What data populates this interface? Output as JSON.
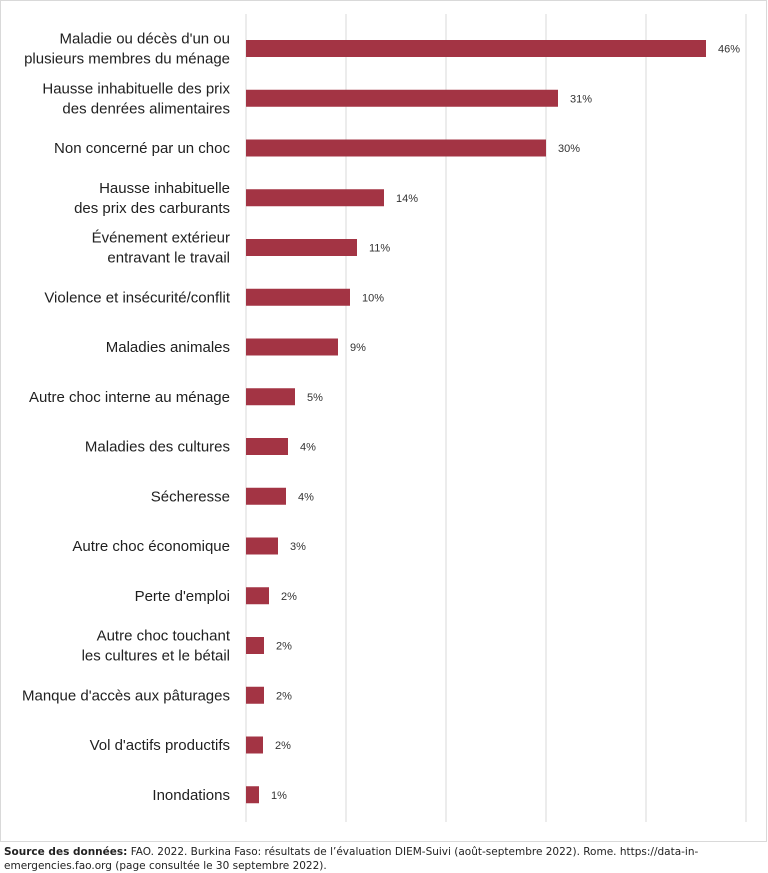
{
  "chart_data": {
    "type": "bar",
    "orientation": "horizontal",
    "categories": [
      [
        "Maladie ou décès d'un ou",
        "plusieurs membres du ménage"
      ],
      [
        "Hausse inhabituelle des prix",
        "des denrées alimentaires"
      ],
      [
        "Non concerné par un choc"
      ],
      [
        "Hausse inhabituelle",
        "des prix des carburants"
      ],
      [
        "Événement extérieur",
        "entravant le travail"
      ],
      [
        "Violence et insécurité/conflit"
      ],
      [
        "Maladies animales"
      ],
      [
        "Autre choc interne au ménage"
      ],
      [
        "Maladies des cultures"
      ],
      [
        "Sécheresse"
      ],
      [
        "Autre choc économique"
      ],
      [
        "Perte d'emploi"
      ],
      [
        "Autre choc touchant",
        "les cultures et le bétail"
      ],
      [
        "Manque d'accès aux pâturages"
      ],
      [
        "Vol d'actifs productifs"
      ],
      [
        "Inondations"
      ]
    ],
    "values": [
      46,
      31,
      30,
      14,
      11,
      10,
      9,
      5,
      4,
      4,
      3,
      2,
      2,
      2,
      2,
      1
    ],
    "value_labels": [
      "46%",
      "31%",
      "30%",
      "14%",
      "11%",
      "10%",
      "9%",
      "5%",
      "4%",
      "4%",
      "3%",
      "2%",
      "2%",
      "2%",
      "2%",
      "1%"
    ],
    "bar_values": [
      46,
      31.2,
      30,
      13.8,
      11.1,
      10.4,
      9.2,
      4.9,
      4.2,
      4.0,
      3.2,
      2.3,
      1.8,
      1.8,
      1.7,
      1.3
    ],
    "xlim": [
      0,
      50
    ],
    "gridlines_at": [
      0,
      10,
      20,
      30,
      40,
      50
    ],
    "grid": true,
    "bar_color": "#a33444",
    "grid_color": "#d9d9d9"
  },
  "source": {
    "label": "Source des données:",
    "text": " FAO. 2022. Burkina Faso: résultats de l’évaluation DIEM-Suivi (août-septembre 2022). Rome. https://data-in-emergencies.fao.org (page consultée le 30 septembre 2022)."
  }
}
